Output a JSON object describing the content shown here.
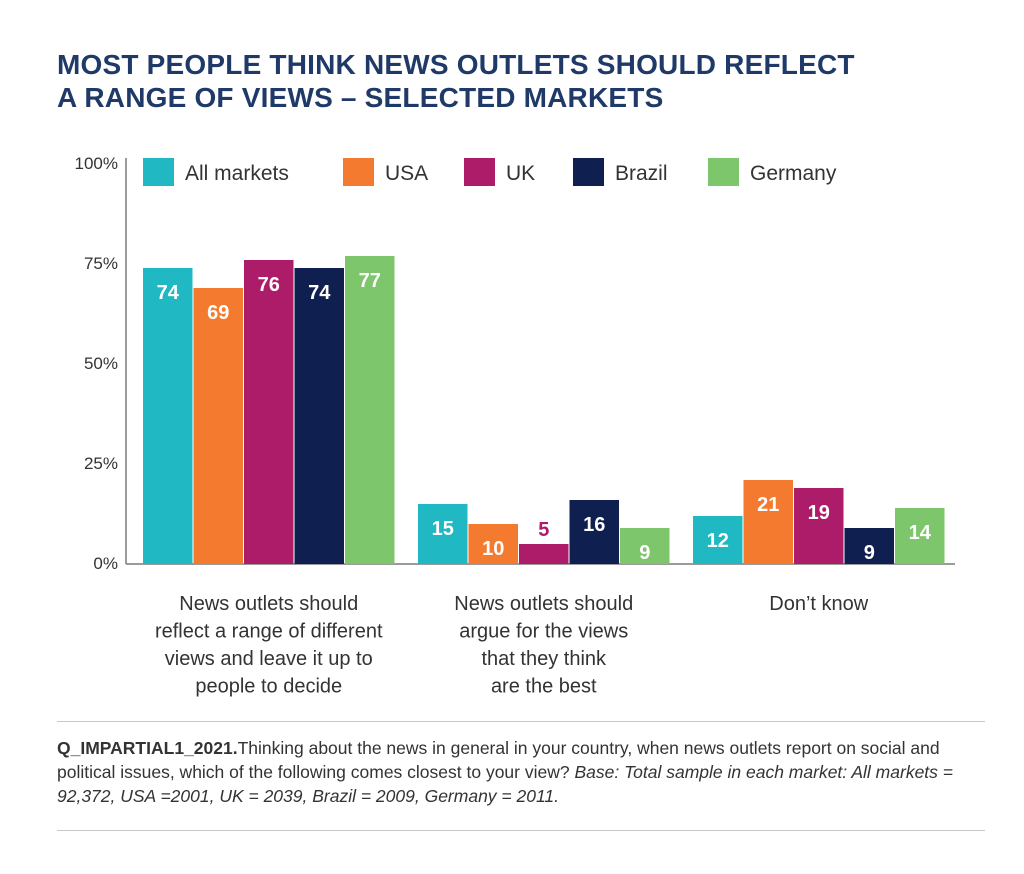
{
  "title": {
    "line1": "MOST PEOPLE THINK NEWS OUTLETS SHOULD REFLECT",
    "line2": "A RANGE OF VIEWS – SELECTED MARKETS"
  },
  "chart_data": {
    "type": "bar",
    "categories": [
      [
        "News outlets should",
        "reflect a range of different",
        "views and leave it up to",
        "people to decide"
      ],
      [
        "News outlets should",
        "argue for the views",
        "that they think",
        "are the best"
      ],
      [
        "Don’t know"
      ]
    ],
    "series": [
      {
        "name": "All markets",
        "color": "#1fb8c3",
        "values": [
          74,
          15,
          12
        ]
      },
      {
        "name": "USA",
        "color": "#f47a2f",
        "values": [
          69,
          10,
          21
        ]
      },
      {
        "name": "UK",
        "color": "#ad1c68",
        "values": [
          76,
          5,
          19
        ]
      },
      {
        "name": "Brazil",
        "color": "#0f1f4f",
        "values": [
          74,
          16,
          9
        ]
      },
      {
        "name": "Germany",
        "color": "#7dc66b",
        "values": [
          77,
          9,
          14
        ]
      }
    ],
    "ylim": [
      0,
      100
    ],
    "yticks": [
      "0%",
      "25%",
      "50%",
      "75%",
      "100%"
    ],
    "ytick_values": [
      0,
      25,
      50,
      75,
      100
    ],
    "legend_position": "top",
    "grid": false
  },
  "footnote": {
    "code": "Q_IMPARTIAL1_2021.",
    "question": "Thinking about the news in general in your country, when news outlets report on social and political issues, which of the following comes closest to your view? ",
    "base": "Base: Total sample in each market: All markets = 92,372, USA =2001, UK = 2039, Brazil = 2009, Germany = 2011."
  }
}
